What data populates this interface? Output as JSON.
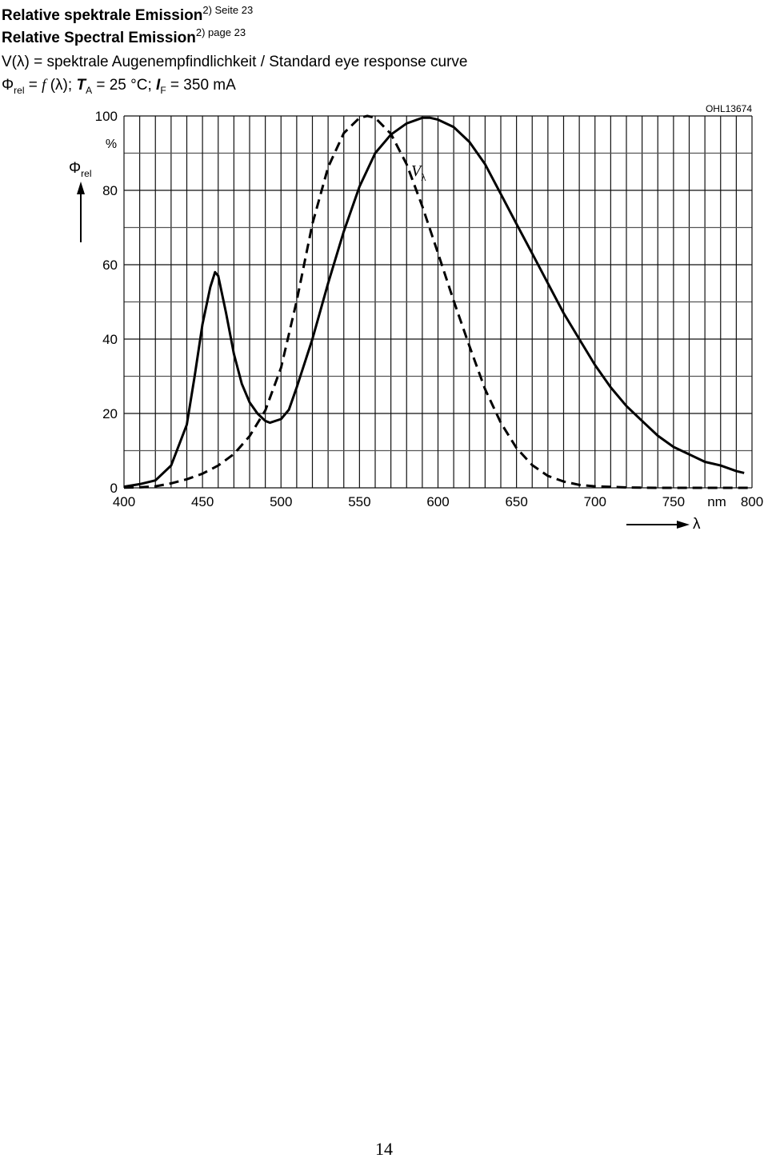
{
  "chart_data": {
    "type": "line",
    "title": "Relative spektrale Emission",
    "title_note": "2) Seite 23",
    "subtitle": "Relative Spectral Emission",
    "subtitle_note": "2) page 23",
    "description": "V(λ) = spektrale Augenempfindlichkeit / Standard eye response curve",
    "condition_parts": [
      "Φ",
      "rel",
      " = ",
      "f",
      " (λ); ",
      "T",
      "A",
      " = 25 °C; ",
      "I",
      "F",
      " = 350 mA"
    ],
    "figure_id": "OHL13674",
    "y_label": "Φ",
    "y_label_sub": "rel",
    "y_unit": "%",
    "x_label": "λ",
    "x_unit": "nm",
    "annotation": "V",
    "annotation_sub": "λ",
    "xlim": [
      400,
      800
    ],
    "ylim": [
      0,
      100
    ],
    "xticks": [
      400,
      450,
      500,
      550,
      600,
      650,
      700,
      750,
      800
    ],
    "yticks": [
      0,
      20,
      40,
      60,
      80,
      100
    ],
    "x_minor_ticks": [
      410,
      420,
      430,
      440,
      460,
      470,
      480,
      490,
      510,
      520,
      530,
      540,
      560,
      570,
      580,
      590,
      610,
      620,
      630,
      640,
      660,
      670,
      680,
      690,
      710,
      720,
      730,
      740,
      760,
      770,
      780,
      790
    ],
    "y_minor_ticks": [
      10,
      30,
      50,
      70,
      90
    ],
    "grid": true,
    "series": [
      {
        "color": "#000000",
        "line_style": "solid",
        "x": [
          400,
          410,
          420,
          430,
          440,
          445,
          450,
          455,
          458,
          460,
          465,
          470,
          475,
          480,
          485,
          490,
          493,
          500,
          505,
          510,
          520,
          530,
          540,
          550,
          560,
          570,
          580,
          590,
          595,
          600,
          610,
          620,
          630,
          640,
          650,
          660,
          670,
          680,
          690,
          700,
          710,
          720,
          730,
          740,
          750,
          760,
          770,
          780,
          790,
          795
        ],
        "values": [
          0.3,
          1,
          2,
          6,
          17,
          30,
          44,
          54,
          58,
          57,
          47,
          36,
          28,
          23,
          20,
          18,
          17.5,
          18.5,
          21,
          27,
          40,
          55,
          69,
          81,
          90,
          95,
          98,
          99.5,
          99.5,
          99,
          97,
          93,
          87,
          79,
          71,
          63,
          55,
          47,
          40,
          33,
          27,
          22,
          18,
          14,
          11,
          9,
          7,
          6,
          4.5,
          4
        ]
      },
      {
        "color": "#000000",
        "line_style": "dashed",
        "x": [
          400,
          410,
          420,
          430,
          440,
          450,
          460,
          470,
          480,
          490,
          500,
          510,
          520,
          530,
          540,
          550,
          555,
          560,
          570,
          580,
          590,
          600,
          610,
          620,
          630,
          640,
          650,
          660,
          670,
          680,
          690,
          700,
          720,
          740,
          760,
          780,
          800
        ],
        "values": [
          0.04,
          0.12,
          0.4,
          1.2,
          2.3,
          3.8,
          6,
          9.1,
          13.9,
          20.8,
          32.3,
          50.3,
          71,
          86.2,
          95.4,
          99.5,
          100,
          99.5,
          95.2,
          87,
          75.7,
          63.1,
          50.3,
          38.1,
          26.5,
          17.5,
          10.7,
          6.1,
          3.2,
          1.7,
          0.8,
          0.4,
          0.1,
          0,
          0,
          0,
          0
        ]
      }
    ]
  },
  "page_number": "14"
}
